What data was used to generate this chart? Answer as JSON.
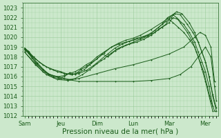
{
  "bg_color": "#cce8cc",
  "grid_color": "#99cc99",
  "line_color": "#1a5c1a",
  "marker_color": "#1a5c1a",
  "xlabel": "Pression niveau de la mer( hPa )",
  "ylim": [
    1012,
    1023.5
  ],
  "yticks": [
    1012,
    1013,
    1014,
    1015,
    1016,
    1017,
    1018,
    1019,
    1020,
    1021,
    1022,
    1023
  ],
  "xtick_labels": [
    "Sam",
    "Jeu",
    "Dim",
    "Lun",
    "Mar",
    "Mer"
  ],
  "xtick_positions": [
    0,
    1,
    2,
    3,
    4,
    5
  ],
  "xlabel_fontsize": 7.5,
  "tick_fontsize": 6,
  "xlim": [
    -0.05,
    5.35
  ],
  "lines": [
    {
      "x": [
        0.0,
        0.12,
        0.25,
        0.4,
        0.6,
        0.8,
        1.0,
        1.15,
        1.3,
        1.5,
        1.65,
        1.8,
        2.0,
        2.2,
        2.4,
        2.6,
        2.8,
        3.0,
        3.2,
        3.5,
        3.8,
        4.0,
        4.1,
        4.2,
        4.35,
        4.55,
        4.7,
        4.8,
        4.9,
        5.0,
        5.1,
        5.2,
        5.3
      ],
      "y": [
        1018.9,
        1018.5,
        1018.0,
        1017.5,
        1017.0,
        1016.7,
        1016.5,
        1016.3,
        1016.2,
        1016.4,
        1016.7,
        1017.2,
        1017.8,
        1018.4,
        1019.0,
        1019.4,
        1019.7,
        1019.9,
        1020.2,
        1020.8,
        1021.5,
        1022.0,
        1022.3,
        1022.6,
        1022.4,
        1021.5,
        1020.5,
        1019.5,
        1018.5,
        1017.5,
        1016.0,
        1014.0,
        1012.5
      ],
      "marker": "+"
    },
    {
      "x": [
        0.0,
        0.15,
        0.3,
        0.5,
        0.7,
        0.9,
        1.1,
        1.3,
        1.5,
        1.7,
        1.9,
        2.1,
        2.3,
        2.5,
        2.7,
        2.9,
        3.1,
        3.3,
        3.5,
        3.7,
        3.9,
        4.05,
        4.15,
        4.3,
        4.5,
        4.65,
        4.8,
        4.9,
        5.0,
        5.1,
        5.2,
        5.3
      ],
      "y": [
        1018.8,
        1018.3,
        1017.8,
        1017.2,
        1016.8,
        1016.5,
        1016.3,
        1016.2,
        1016.3,
        1016.6,
        1017.1,
        1017.7,
        1018.3,
        1018.9,
        1019.3,
        1019.6,
        1019.9,
        1020.1,
        1020.4,
        1021.0,
        1021.6,
        1022.0,
        1022.4,
        1022.3,
        1021.3,
        1020.5,
        1019.5,
        1018.5,
        1017.5,
        1016.0,
        1014.2,
        1012.8
      ],
      "marker": "+"
    },
    {
      "x": [
        0.0,
        0.1,
        0.2,
        0.35,
        0.5,
        0.65,
        0.8,
        0.95,
        1.1,
        1.25,
        1.4,
        1.55,
        1.7,
        1.85,
        2.0,
        2.2,
        2.4,
        2.6,
        2.8,
        3.0,
        3.2,
        3.4,
        3.6,
        3.8,
        3.95,
        4.1,
        4.2,
        4.3,
        4.5,
        4.65,
        4.75,
        4.85,
        4.95,
        5.05,
        5.15,
        5.25
      ],
      "y": [
        1018.9,
        1018.6,
        1018.1,
        1017.4,
        1016.8,
        1016.3,
        1016.0,
        1016.0,
        1016.1,
        1016.3,
        1016.5,
        1016.8,
        1017.2,
        1017.5,
        1018.0,
        1018.5,
        1019.0,
        1019.3,
        1019.5,
        1019.7,
        1019.9,
        1020.2,
        1020.7,
        1021.3,
        1022.0,
        1022.3,
        1022.0,
        1021.5,
        1020.5,
        1019.5,
        1018.5,
        1017.5,
        1016.5,
        1015.0,
        1013.5,
        1012.5
      ],
      "marker": "+"
    },
    {
      "x": [
        0.0,
        0.1,
        0.2,
        0.35,
        0.5,
        0.65,
        0.8,
        0.95,
        1.1,
        1.25,
        1.4,
        1.55,
        1.7,
        1.85,
        2.0,
        2.15,
        2.3,
        2.5,
        2.7,
        2.9,
        3.1,
        3.3,
        3.5,
        3.7,
        3.9,
        4.0,
        4.1,
        4.25,
        4.4,
        4.55,
        4.7,
        4.8,
        4.9,
        5.0,
        5.1,
        5.2
      ],
      "y": [
        1018.7,
        1018.4,
        1017.9,
        1017.3,
        1016.7,
        1016.2,
        1015.9,
        1015.8,
        1016.0,
        1016.4,
        1016.2,
        1016.7,
        1017.0,
        1017.4,
        1017.8,
        1018.3,
        1018.0,
        1018.6,
        1019.0,
        1019.3,
        1019.5,
        1019.8,
        1020.2,
        1020.8,
        1021.3,
        1021.8,
        1021.5,
        1021.0,
        1020.5,
        1019.8,
        1019.0,
        1018.0,
        1016.8,
        1015.5,
        1014.0,
        1012.5
      ],
      "marker": "+"
    },
    {
      "x": [
        0.0,
        0.1,
        0.2,
        0.3,
        0.5,
        0.7,
        0.9,
        1.1,
        1.25,
        1.4,
        1.6,
        1.8,
        2.0,
        2.2,
        2.4,
        2.6,
        2.8,
        3.0,
        3.2,
        3.4,
        3.6,
        3.8,
        4.0,
        4.1,
        4.25,
        4.4,
        4.55,
        4.7,
        4.8,
        4.9,
        5.0,
        5.1,
        5.2
      ],
      "y": [
        1018.8,
        1018.5,
        1018.0,
        1017.4,
        1016.7,
        1016.2,
        1016.0,
        1015.8,
        1015.7,
        1015.8,
        1016.2,
        1016.7,
        1017.3,
        1017.8,
        1018.4,
        1018.9,
        1019.2,
        1019.5,
        1019.8,
        1020.1,
        1020.5,
        1021.0,
        1021.5,
        1022.0,
        1021.8,
        1021.3,
        1020.5,
        1019.5,
        1018.5,
        1017.5,
        1016.5,
        1015.0,
        1013.0
      ],
      "marker": "+"
    },
    {
      "x": [
        0.0,
        0.3,
        0.6,
        0.9,
        1.2,
        1.5,
        2.0,
        2.5,
        3.0,
        3.5,
        4.0,
        4.4,
        4.7,
        4.85,
        5.0,
        5.15,
        5.25
      ],
      "y": [
        1018.5,
        1017.2,
        1016.2,
        1015.7,
        1015.6,
        1015.8,
        1016.3,
        1016.8,
        1017.2,
        1017.7,
        1018.3,
        1019.0,
        1020.0,
        1020.5,
        1020.2,
        1019.0,
        1015.5
      ],
      "marker": "+"
    },
    {
      "x": [
        0.0,
        0.5,
        1.0,
        1.5,
        2.0,
        2.5,
        3.0,
        3.5,
        4.0,
        4.3,
        4.6,
        4.8,
        5.0,
        5.15,
        5.25,
        5.3
      ],
      "y": [
        1018.5,
        1016.5,
        1015.8,
        1015.5,
        1015.5,
        1015.5,
        1015.5,
        1015.6,
        1015.8,
        1016.2,
        1017.0,
        1018.0,
        1019.0,
        1018.0,
        1015.0,
        1013.5
      ],
      "marker": "+"
    }
  ]
}
